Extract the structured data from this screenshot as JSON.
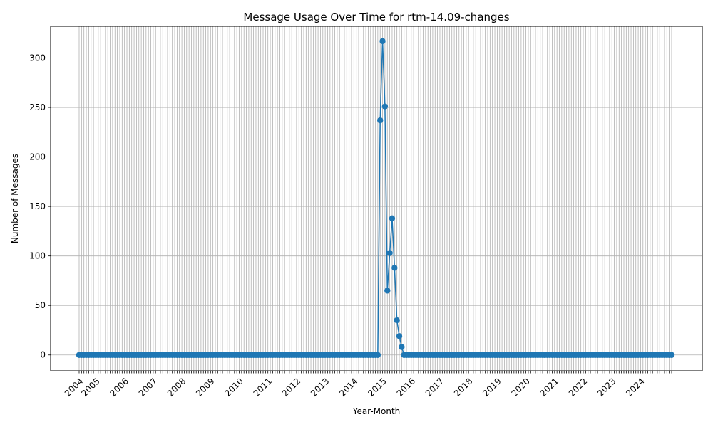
{
  "chart_data": {
    "type": "line",
    "title": "Message Usage Over Time for rtm-14.09-changes",
    "xlabel": "Year-Month",
    "ylabel": "Number of Messages",
    "x_start": "2004-06",
    "x_end": "2025-02",
    "year_ticks": [
      "2004",
      "2005",
      "2006",
      "2007",
      "2008",
      "2009",
      "2010",
      "2011",
      "2012",
      "2013",
      "2014",
      "2015",
      "2016",
      "2017",
      "2018",
      "2019",
      "2020",
      "2021",
      "2022",
      "2023",
      "2024"
    ],
    "y_ticks": [
      0,
      50,
      100,
      150,
      200,
      250,
      300
    ],
    "ylim": [
      -16,
      332
    ],
    "grid": true,
    "color": "#1f77b4",
    "marker": "circle",
    "nonzero_points": [
      {
        "x": "2014-12",
        "y": 237
      },
      {
        "x": "2015-01",
        "y": 317
      },
      {
        "x": "2015-02",
        "y": 251
      },
      {
        "x": "2015-03",
        "y": 65
      },
      {
        "x": "2015-04",
        "y": 103
      },
      {
        "x": "2015-05",
        "y": 138
      },
      {
        "x": "2015-06",
        "y": 88
      },
      {
        "x": "2015-07",
        "y": 35
      },
      {
        "x": "2015-08",
        "y": 19
      },
      {
        "x": "2015-09",
        "y": 8
      }
    ],
    "default_value": 0
  }
}
